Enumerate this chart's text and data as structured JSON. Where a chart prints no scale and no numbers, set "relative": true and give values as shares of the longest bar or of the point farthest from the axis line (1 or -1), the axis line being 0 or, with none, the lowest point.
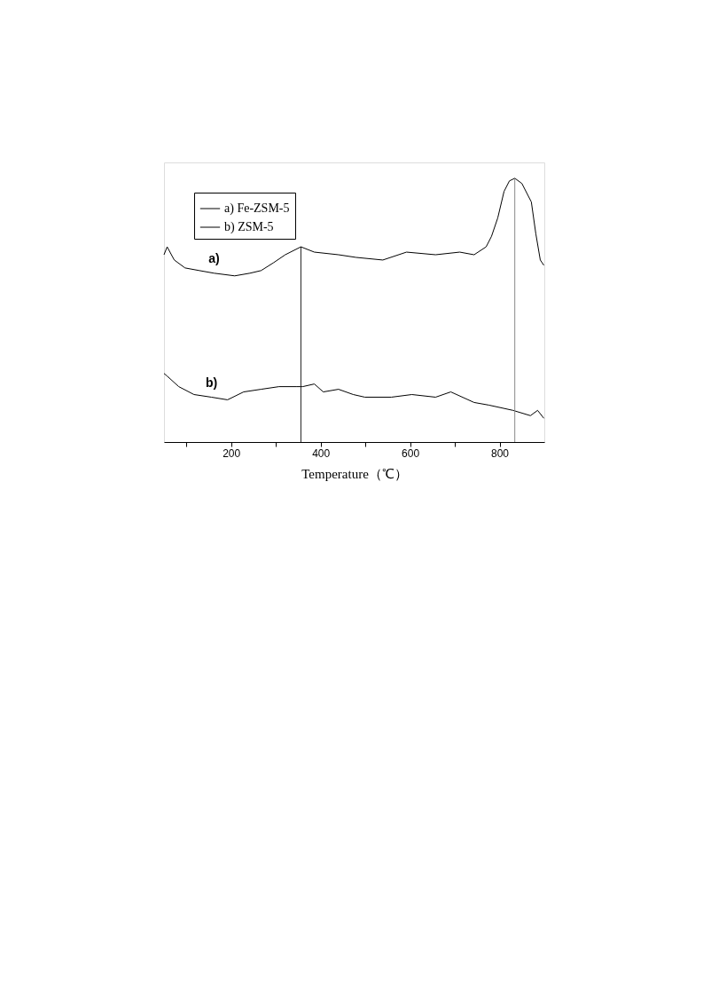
{
  "chart_data": {
    "type": "line",
    "xlabel": "Temperature（℃）",
    "relative": true,
    "xlim": [
      50,
      900
    ],
    "xticks": [
      {
        "value": 100,
        "label": null
      },
      200,
      {
        "value": 300,
        "label": null
      },
      400,
      {
        "value": 500,
        "label": null
      },
      600,
      {
        "value": 700,
        "label": null
      },
      800
    ],
    "tick_labels": "x",
    "grid": false,
    "legend": "top left",
    "marker": "none",
    "line_style": "solid",
    "series": [
      {
        "name": "a) Fe-ZSM-5",
        "color": "#000000",
        "x": [
          50,
          57,
          73,
          97,
          129,
          162,
          208,
          242,
          267,
          295,
          321,
          356,
          386,
          440,
          479,
          539,
          592,
          657,
          711,
          743,
          770,
          782,
          796,
          810,
          822,
          834,
          850,
          871,
          881,
          891,
          899
        ],
        "values": [
          0.71,
          0.74,
          0.69,
          0.66,
          0.65,
          0.64,
          0.63,
          0.64,
          0.65,
          0.68,
          0.71,
          0.74,
          0.72,
          0.71,
          0.7,
          0.69,
          0.72,
          0.71,
          0.72,
          0.71,
          0.74,
          0.78,
          0.85,
          0.95,
          0.99,
          1,
          0.98,
          0.91,
          0.79,
          0.69,
          0.67
        ]
      },
      {
        "name": "b) ZSM-5",
        "color": "#000000",
        "x": [
          50,
          57,
          83,
          117,
          156,
          192,
          228,
          267,
          307,
          347,
          360,
          386,
          406,
          440,
          473,
          499,
          558,
          604,
          657,
          691,
          743,
          776,
          830,
          869,
          885,
          899
        ],
        "values": [
          0.26,
          0.25,
          0.21,
          0.18,
          0.17,
          0.16,
          0.19,
          0.2,
          0.21,
          0.21,
          0.21,
          0.22,
          0.19,
          0.2,
          0.18,
          0.17,
          0.17,
          0.18,
          0.17,
          0.19,
          0.15,
          0.14,
          0.12,
          0.1,
          0.12,
          0.09
        ]
      }
    ],
    "ref_lines": [
      {
        "axis": "x",
        "value": 356,
        "color": "#222222"
      },
      {
        "axis": "x",
        "value": 834,
        "color": "#888888"
      }
    ],
    "annotations": [
      "a)",
      "b)"
    ]
  }
}
